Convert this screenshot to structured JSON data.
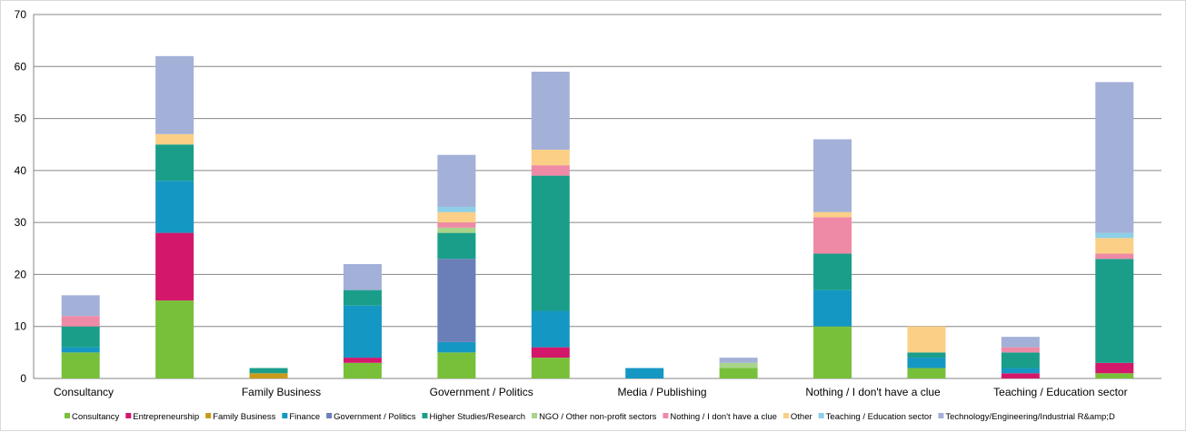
{
  "chart_data": {
    "type": "bar",
    "stacked": true,
    "title": "",
    "xlabel": "",
    "ylabel": "",
    "ylim": [
      0,
      70
    ],
    "y_ticks": [
      "0",
      "10",
      "20",
      "30",
      "40",
      "50",
      "60",
      "70"
    ],
    "grid": true,
    "legend_position": "bottom",
    "categories": [
      "Consultancy",
      "Entrepreneurship",
      "Family Business",
      "Finance",
      "Government / Politics",
      "Higher Studies/Research",
      "Media / Publishing",
      "NGO / Other non-profit sectors",
      "Nothing / I don't have a clue",
      "Other",
      "Teaching / Education sector",
      "Technology/Engineering/Industrial R&D"
    ],
    "category_labels_shown": [
      "Consultancy",
      "",
      "Family Business",
      "",
      "Government / Politics",
      "",
      "Media / Publishing",
      "",
      "Nothing / I don't have a clue",
      "",
      "Teaching / Education sector",
      ""
    ],
    "series": [
      {
        "name": "Consultancy",
        "color": "#79c03a",
        "values": [
          5,
          15,
          0,
          3,
          5,
          4,
          0,
          2,
          10,
          2,
          0,
          1
        ]
      },
      {
        "name": "Entrepreneurship",
        "color": "#d3186c",
        "values": [
          0,
          13,
          0,
          1,
          0,
          2,
          0,
          0,
          0,
          0,
          1,
          2
        ]
      },
      {
        "name": "Family Business",
        "color": "#c89a1a",
        "values": [
          0,
          0,
          1,
          0,
          0,
          0,
          0,
          0,
          0,
          0,
          0,
          0
        ]
      },
      {
        "name": "Finance",
        "color": "#1597c4",
        "values": [
          1,
          10,
          0,
          10,
          2,
          7,
          2,
          0,
          7,
          2,
          1,
          0
        ]
      },
      {
        "name": "Government / Politics",
        "color": "#6a7fb8",
        "values": [
          0,
          0,
          0,
          0,
          16,
          0,
          0,
          0,
          0,
          0,
          0,
          0
        ]
      },
      {
        "name": "Higher Studies/Research",
        "color": "#1a9e8a",
        "values": [
          4,
          7,
          1,
          3,
          5,
          26,
          0,
          0,
          7,
          1,
          3,
          20
        ]
      },
      {
        "name": "NGO / Other non-profit sectors",
        "color": "#a8d48a",
        "values": [
          0,
          0,
          0,
          0,
          1,
          0,
          0,
          1,
          0,
          0,
          0,
          0
        ]
      },
      {
        "name": "Nothing / I don't have a clue",
        "color": "#ee8aa6",
        "values": [
          2,
          0,
          0,
          0,
          1,
          2,
          0,
          0,
          7,
          0,
          1,
          1
        ]
      },
      {
        "name": "Other",
        "color": "#fbcf86",
        "values": [
          0,
          2,
          0,
          0,
          2,
          3,
          0,
          0,
          1,
          5,
          0,
          3
        ]
      },
      {
        "name": "Teaching / Education sector",
        "color": "#8ccfe6",
        "values": [
          0,
          0,
          0,
          0,
          1,
          0,
          0,
          0,
          0,
          0,
          0,
          1
        ]
      },
      {
        "name": "Technology/Engineering/Industrial R&amp;D",
        "color": "#a3b0d8",
        "values": [
          4,
          15,
          0,
          5,
          10,
          15,
          0,
          1,
          14,
          0,
          2,
          29
        ]
      }
    ]
  }
}
